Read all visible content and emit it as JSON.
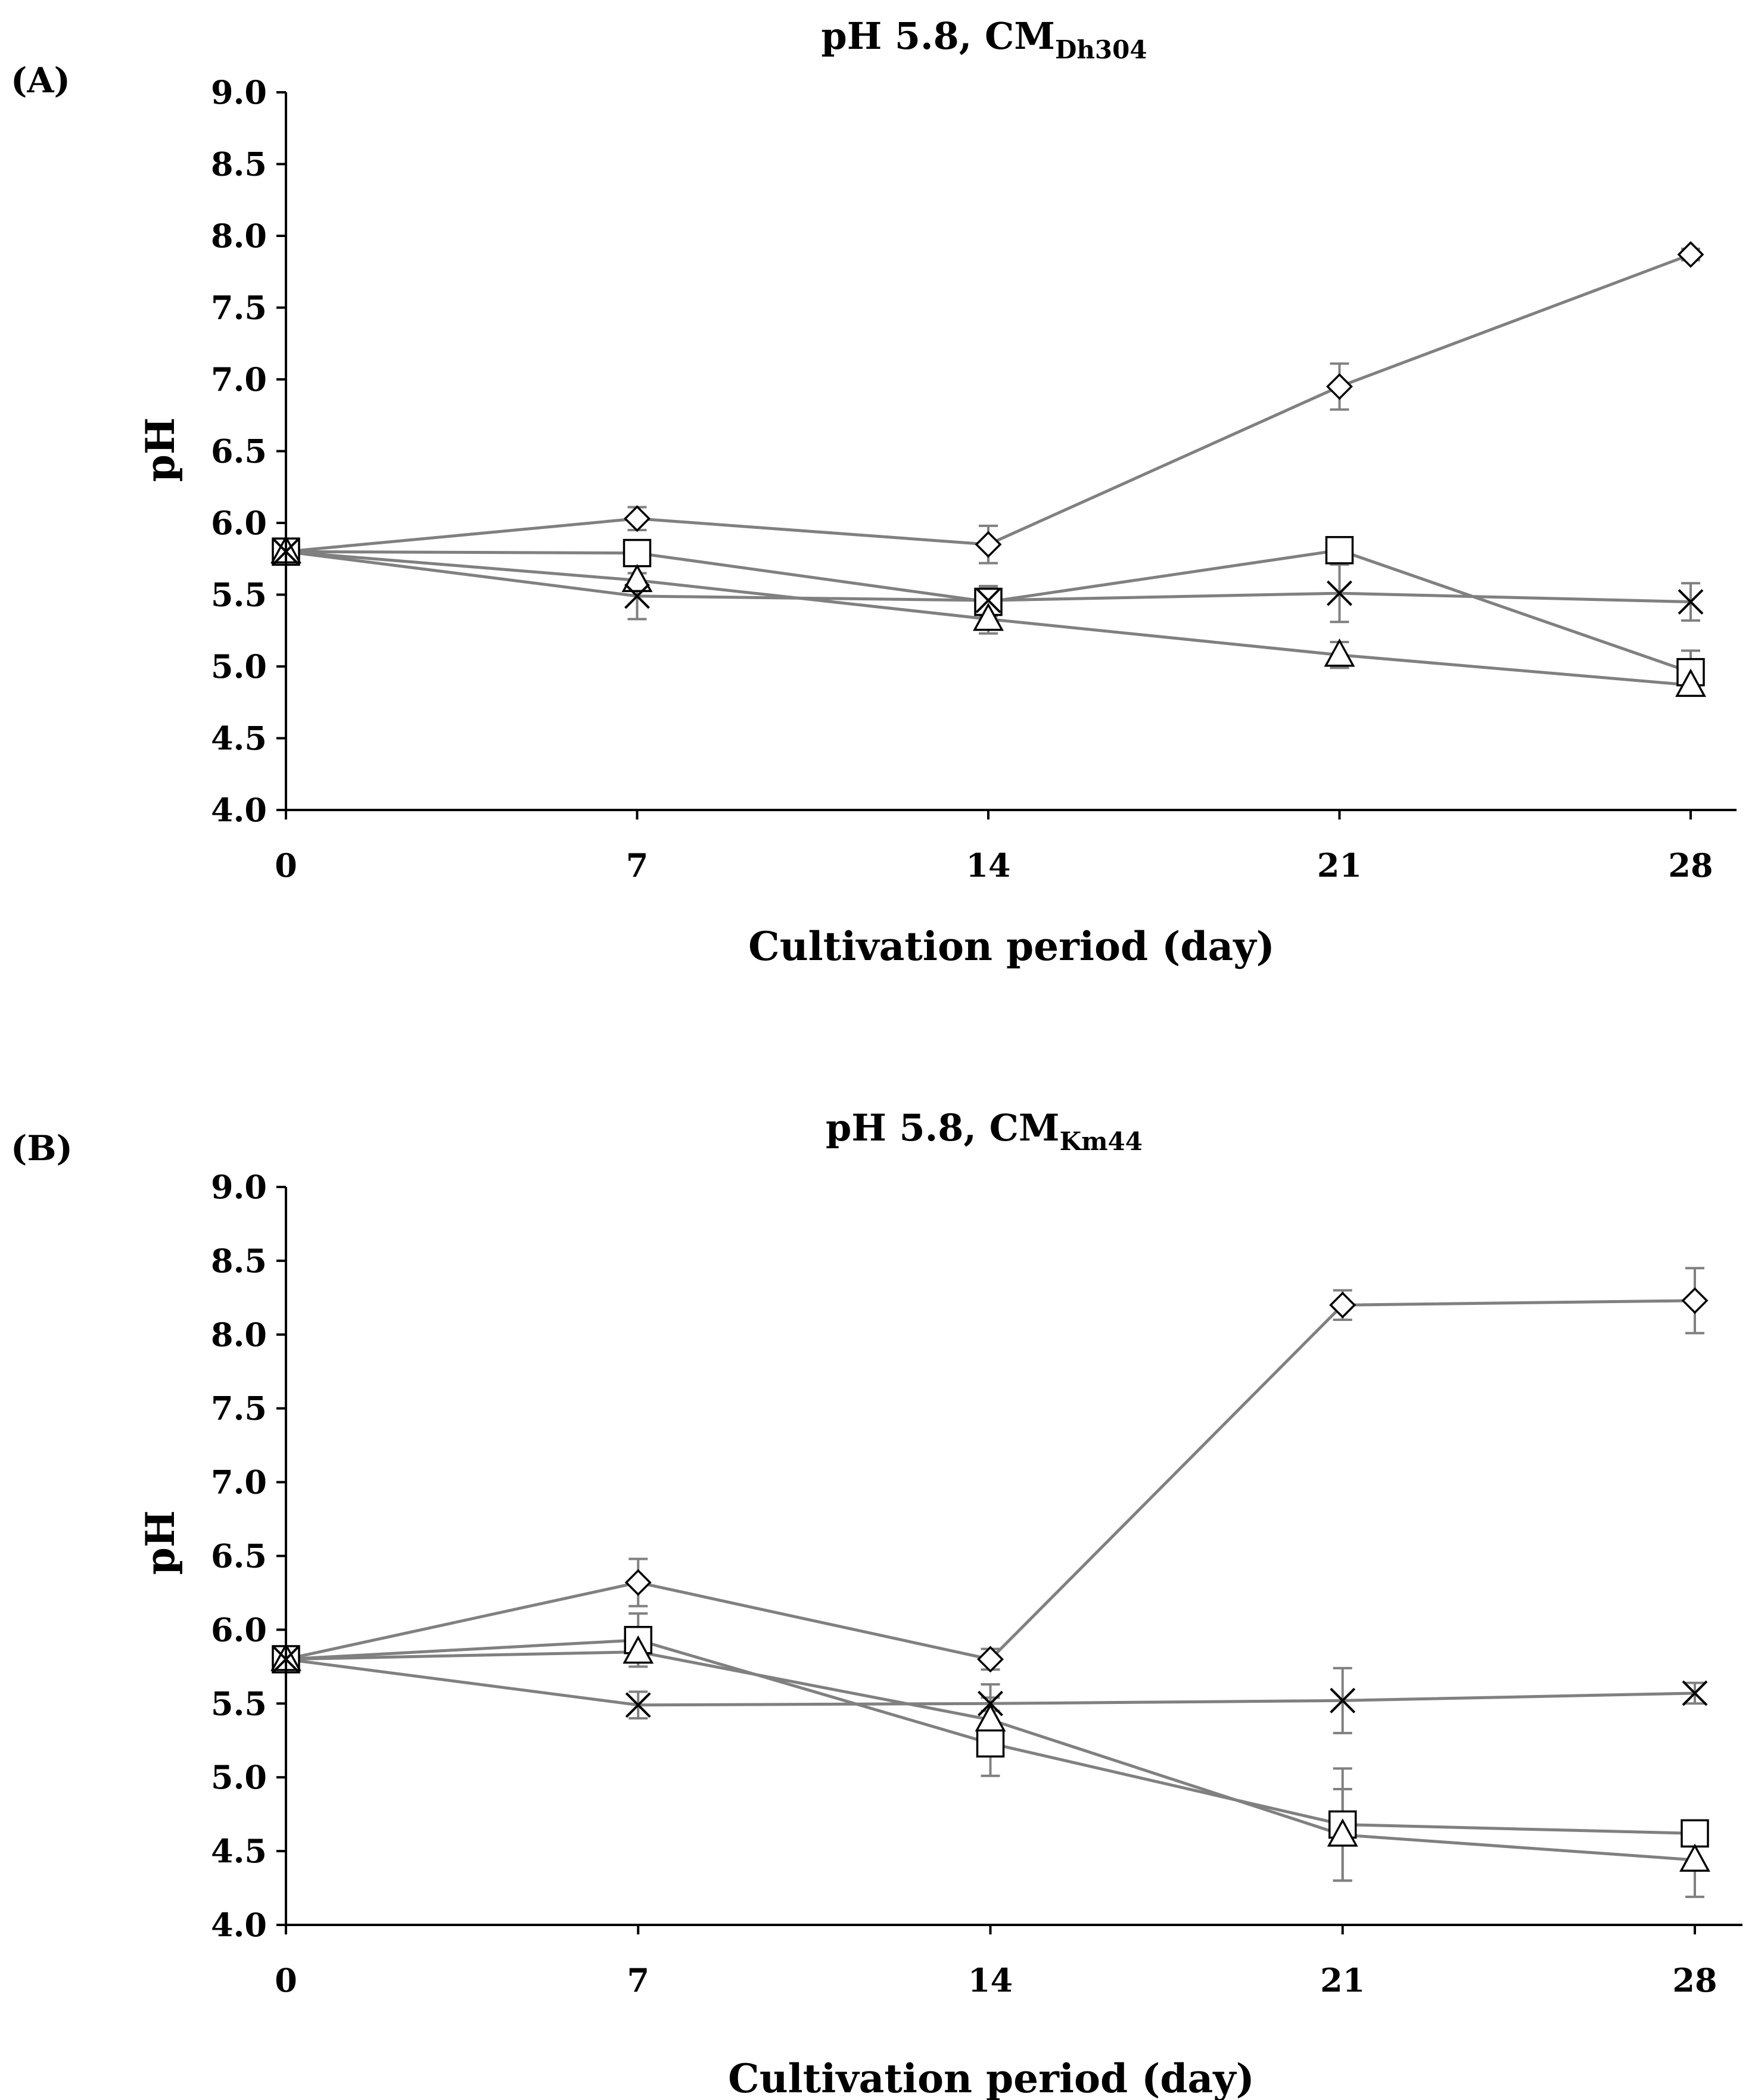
{
  "chart_data": [
    {
      "type": "line",
      "panel": "(A)",
      "title": "pH 5.8, CM",
      "title_subscript": "Dh304",
      "xlabel": "Cultivation period (day)",
      "ylabel": "pH",
      "x": [
        0,
        7,
        14,
        21,
        28
      ],
      "xticks": [
        "0",
        "7",
        "14",
        "21",
        "28"
      ],
      "ylim": [
        4.0,
        9.0
      ],
      "yticks": [
        "4.0",
        "4.5",
        "5.0",
        "5.5",
        "6.0",
        "6.5",
        "7.0",
        "7.5",
        "8.0",
        "8.5",
        "9.0"
      ],
      "grid": false,
      "legend": "none",
      "series": [
        {
          "marker": "diamond",
          "values": [
            5.8,
            6.03,
            5.85,
            6.95,
            7.87
          ],
          "errors": [
            0,
            0.08,
            0.13,
            0.16,
            0.04
          ]
        },
        {
          "marker": "square",
          "values": [
            5.8,
            5.79,
            5.45,
            5.81,
            4.96
          ],
          "errors": [
            0,
            0.05,
            0.1,
            0.05,
            0.15
          ]
        },
        {
          "marker": "triangle",
          "values": [
            5.8,
            5.6,
            5.33,
            5.08,
            4.87
          ],
          "errors": [
            0,
            0.05,
            0.1,
            0.09,
            0.06
          ]
        },
        {
          "marker": "cross",
          "values": [
            5.8,
            5.49,
            5.46,
            5.51,
            5.45
          ],
          "errors": [
            0,
            0.16,
            0.1,
            0.2,
            0.13
          ]
        }
      ]
    },
    {
      "type": "line",
      "panel": "(B)",
      "title": "pH 5.8, CM",
      "title_subscript": "Km44",
      "xlabel": "Cultivation period (day)",
      "ylabel": "pH",
      "x": [
        0,
        7,
        14,
        21,
        28
      ],
      "xticks": [
        "0",
        "7",
        "14",
        "21",
        "28"
      ],
      "ylim": [
        4.0,
        9.0
      ],
      "yticks": [
        "4.0",
        "4.5",
        "5.0",
        "5.5",
        "6.0",
        "6.5",
        "7.0",
        "7.5",
        "8.0",
        "8.5",
        "9.0"
      ],
      "grid": false,
      "legend": "none",
      "series": [
        {
          "marker": "diamond",
          "values": [
            5.8,
            6.32,
            5.8,
            8.2,
            8.23
          ],
          "errors": [
            0,
            0.16,
            0.07,
            0.1,
            0.22
          ]
        },
        {
          "marker": "square",
          "values": [
            5.8,
            5.93,
            5.23,
            4.68,
            4.62
          ],
          "errors": [
            0,
            0.18,
            0.22,
            0.38,
            0.03
          ]
        },
        {
          "marker": "triangle",
          "values": [
            5.8,
            5.85,
            5.39,
            4.61,
            4.44
          ],
          "errors": [
            0,
            0.05,
            0.15,
            0.31,
            0.25
          ]
        },
        {
          "marker": "cross",
          "values": [
            5.8,
            5.49,
            5.5,
            5.52,
            5.57
          ],
          "errors": [
            0,
            0.09,
            0.13,
            0.22,
            0.07
          ]
        }
      ]
    }
  ]
}
